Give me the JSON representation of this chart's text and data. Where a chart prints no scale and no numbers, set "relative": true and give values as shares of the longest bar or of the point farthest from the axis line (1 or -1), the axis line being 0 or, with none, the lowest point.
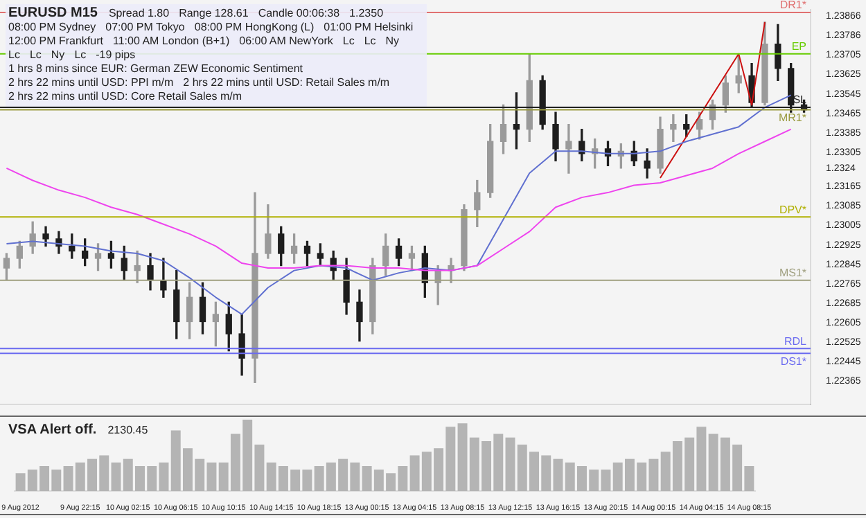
{
  "chart_data": [
    {
      "type": "candlestick",
      "title": "EURUSD M15",
      "categories": [
        null,
        null,
        null,
        null,
        null,
        null,
        null,
        null,
        null,
        null,
        null,
        null,
        null,
        null,
        null,
        null,
        null,
        null,
        null,
        null,
        null,
        null,
        null,
        null,
        null,
        null,
        null,
        null,
        null,
        null,
        null,
        null,
        null,
        null,
        null,
        null,
        null,
        null,
        null,
        null,
        null,
        null,
        null,
        null,
        null,
        null,
        null,
        null,
        null,
        null,
        null,
        null,
        null,
        null,
        null,
        null,
        null,
        null,
        null,
        null,
        null,
        null
      ],
      "ohlc": [
        [
          1.2283,
          1.2289,
          1.2278,
          1.2287
        ],
        [
          1.2287,
          1.2294,
          1.2283,
          1.2292
        ],
        [
          1.2292,
          1.2302,
          1.2289,
          1.2297
        ],
        [
          1.2297,
          1.23,
          1.2292,
          1.2295
        ],
        [
          1.2295,
          1.2298,
          1.2289,
          1.2292
        ],
        [
          1.2292,
          1.2297,
          1.2287,
          1.229
        ],
        [
          1.229,
          1.2295,
          1.2284,
          1.2287
        ],
        [
          1.2287,
          1.2293,
          1.2282,
          1.2289
        ],
        [
          1.2289,
          1.2294,
          1.2283,
          1.2287
        ],
        [
          1.2287,
          1.2292,
          1.2278,
          1.2282
        ],
        [
          1.2282,
          1.229,
          1.2277,
          1.2284
        ],
        [
          1.2284,
          1.2289,
          1.2274,
          1.2278
        ],
        [
          1.2278,
          1.2287,
          1.2271,
          1.2274
        ],
        [
          1.2274,
          1.2282,
          1.2254,
          1.2261
        ],
        [
          1.2261,
          1.2277,
          1.2254,
          1.2271
        ],
        [
          1.2271,
          1.2277,
          1.2256,
          1.2261
        ],
        [
          1.2261,
          1.2269,
          1.2251,
          1.2264
        ],
        [
          1.2264,
          1.2269,
          1.2249,
          1.2256
        ],
        [
          1.2256,
          1.2264,
          1.2239,
          1.2246
        ],
        [
          1.2246,
          1.2314,
          1.2236,
          1.2289
        ],
        [
          1.2289,
          1.2309,
          1.2287,
          1.2297
        ],
        [
          1.2297,
          1.23,
          1.2284,
          1.2289
        ],
        [
          1.2289,
          1.2297,
          1.2285,
          1.2292
        ],
        [
          1.2292,
          1.2294,
          1.2284,
          1.2289
        ],
        [
          1.2289,
          1.2293,
          1.2284,
          1.2287
        ],
        [
          1.2287,
          1.229,
          1.2278,
          1.2282
        ],
        [
          1.2282,
          1.2287,
          1.2264,
          1.2269
        ],
        [
          1.2269,
          1.2274,
          1.2253,
          1.2261
        ],
        [
          1.2261,
          1.2287,
          1.2256,
          1.2284
        ],
        [
          1.2284,
          1.2297,
          1.228,
          1.2292
        ],
        [
          1.2292,
          1.2295,
          1.2284,
          1.2287
        ],
        [
          1.2287,
          1.2292,
          1.2282,
          1.2289
        ],
        [
          1.2289,
          1.2292,
          1.2271,
          1.2277
        ],
        [
          1.2277,
          1.2284,
          1.2268,
          1.2282
        ],
        [
          1.2282,
          1.2287,
          1.2277,
          1.2284
        ],
        [
          1.2284,
          1.2309,
          1.2282,
          1.2307
        ],
        [
          1.2307,
          1.2319,
          1.23,
          1.2314
        ],
        [
          1.2314,
          1.2342,
          1.2312,
          1.2335
        ],
        [
          1.2335,
          1.235,
          1.233,
          1.2342
        ],
        [
          1.2342,
          1.2355,
          1.2332,
          1.234
        ],
        [
          1.234,
          1.2371,
          1.2335,
          1.236
        ],
        [
          1.236,
          1.2362,
          1.234,
          1.2342
        ],
        [
          1.2342,
          1.2347,
          1.2327,
          1.2332
        ],
        [
          1.2332,
          1.2342,
          1.2322,
          1.2335
        ],
        [
          1.2335,
          1.234,
          1.2327,
          1.233
        ],
        [
          1.233,
          1.2336,
          1.2324,
          1.2332
        ],
        [
          1.2332,
          1.2335,
          1.2325,
          1.2329
        ],
        [
          1.2329,
          1.2334,
          1.2324,
          1.2331
        ],
        [
          1.2331,
          1.2335,
          1.2325,
          1.2327
        ],
        [
          1.2327,
          1.2332,
          1.232,
          1.2324
        ],
        [
          1.2324,
          1.2345,
          1.2322,
          1.234
        ],
        [
          1.234,
          1.2346,
          1.2335,
          1.2342
        ],
        [
          1.2342,
          1.2346,
          1.2337,
          1.234
        ],
        [
          1.234,
          1.2347,
          1.2336,
          1.2344
        ],
        [
          1.2344,
          1.2352,
          1.234,
          1.235
        ],
        [
          1.235,
          1.2362,
          1.2347,
          1.2359
        ],
        [
          1.2359,
          1.237,
          1.2355,
          1.2362
        ],
        [
          1.2362,
          1.2367,
          1.2349,
          1.2351
        ],
        [
          1.2351,
          1.2384,
          1.235,
          1.2375
        ],
        [
          1.2375,
          1.2383,
          1.236,
          1.2365
        ],
        [
          1.2365,
          1.2367,
          1.2347,
          1.235
        ],
        [
          1.235,
          1.2352,
          1.2347,
          1.2348
        ]
      ],
      "colors": [
        "#9a9a9a",
        "#9a9a9a",
        "#9a9a9a",
        "#1e1e1e",
        "#1e1e1e",
        "#1e1e1e",
        "#1e1e1e",
        "#9a9a9a",
        "#1e1e1e",
        "#1e1e1e",
        "#9a9a9a",
        "#1e1e1e",
        "#1e1e1e",
        "#1e1e1e",
        "#9a9a9a",
        "#1e1e1e",
        "#9a9a9a",
        "#1e1e1e",
        "#1e1e1e",
        "#9a9a9a",
        "#9a9a9a",
        "#1e1e1e",
        "#9a9a9a",
        "#1e1e1e",
        "#1e1e1e",
        "#1e1e1e",
        "#1e1e1e",
        "#1e1e1e",
        "#9a9a9a",
        "#9a9a9a",
        "#1e1e1e",
        "#9a9a9a",
        "#1e1e1e",
        "#9a9a9a",
        "#9a9a9a",
        "#9a9a9a",
        "#9a9a9a",
        "#9a9a9a",
        "#9a9a9a",
        "#1e1e1e",
        "#9a9a9a",
        "#1e1e1e",
        "#1e1e1e",
        "#9a9a9a",
        "#1e1e1e",
        "#9a9a9a",
        "#1e1e1e",
        "#9a9a9a",
        "#1e1e1e",
        "#1e1e1e",
        "#9a9a9a",
        "#9a9a9a",
        "#1e1e1e",
        "#9a9a9a",
        "#9a9a9a",
        "#9a9a9a",
        "#9a9a9a",
        "#1e1e1e",
        "#9a9a9a",
        "#1e1e1e",
        "#1e1e1e",
        "#1e1e1e"
      ],
      "series": [
        {
          "type": "line",
          "color": "#ee44ee",
          "values": [
            1.2324,
            null,
            1.2319,
            null,
            1.2315,
            null,
            1.2312,
            null,
            1.2308,
            null,
            1.2305,
            null,
            1.2301,
            null,
            1.2297,
            null,
            1.2292,
            null,
            1.2285,
            null,
            1.2283,
            null,
            1.2283,
            null,
            1.2284,
            null,
            1.2284,
            null,
            1.2283,
            null,
            1.2283,
            null,
            1.2282,
            null,
            1.2282,
            null,
            1.2284,
            null,
            1.2291,
            null,
            1.2298,
            null,
            1.2308,
            null,
            1.2312,
            null,
            1.2314,
            null,
            1.2317,
            null,
            1.2318,
            null,
            1.2321,
            null,
            1.2324,
            null,
            1.233,
            null,
            1.2335,
            null,
            1.234,
            null
          ]
        },
        {
          "type": "line",
          "color": "#6070d0",
          "values": [
            1.2293,
            null,
            1.2294,
            null,
            1.2293,
            null,
            1.2292,
            null,
            1.229,
            null,
            1.2289,
            null,
            1.2286,
            null,
            1.2279,
            null,
            1.2271,
            null,
            1.2264,
            null,
            1.2275,
            null,
            1.2282,
            null,
            1.2284,
            null,
            1.2283,
            null,
            1.2278,
            null,
            1.2281,
            null,
            1.2283,
            null,
            1.2282,
            null,
            1.2284,
            null,
            1.2303,
            null,
            1.2322,
            null,
            1.2331,
            null,
            1.2331,
            null,
            1.233,
            null,
            1.233,
            null,
            1.2331,
            null,
            1.2335,
            null,
            1.2338,
            null,
            1.2341,
            null,
            1.2349,
            null,
            1.2354,
            null
          ]
        },
        {
          "type": "line",
          "color": "#cc1111",
          "values": [
            null,
            null,
            null,
            null,
            null,
            null,
            null,
            null,
            null,
            null,
            null,
            null,
            null,
            null,
            null,
            null,
            null,
            null,
            null,
            null,
            null,
            null,
            null,
            null,
            null,
            null,
            null,
            null,
            null,
            null,
            null,
            null,
            null,
            null,
            null,
            null,
            null,
            null,
            null,
            null,
            null,
            null,
            null,
            null,
            null,
            null,
            null,
            null,
            null,
            null,
            1.232,
            null,
            null,
            null,
            null,
            null,
            1.2371,
            1.235,
            1.2384,
            null,
            null,
            null
          ]
        }
      ],
      "ylim": [
        1.2227,
        1.2389
      ],
      "yticks": [
        1.22365,
        1.22445,
        1.22525,
        1.22605,
        1.22685,
        1.22765,
        1.22845,
        1.22925,
        1.23005,
        1.23085,
        1.23165,
        1.2324,
        1.23305,
        1.23385,
        1.23465,
        1.23545,
        1.23625,
        1.23705,
        1.23786,
        1.23866
      ],
      "tick_labels": "y",
      "ref_lines": [
        {
          "axis": "y",
          "value": 1.2388,
          "label": "DR1*",
          "color": "#e07070"
        },
        {
          "axis": "y",
          "value": 1.2371,
          "label": "EP",
          "color": "#66cc00"
        },
        {
          "axis": "y",
          "value": 1.2349,
          "label": "SL",
          "color": "#202020"
        },
        {
          "axis": "y",
          "value": 1.2348,
          "label": "MR1*",
          "color": "#9a9a40"
        },
        {
          "axis": "y",
          "value": 1.2304,
          "label": "DPV*",
          "color": "#b0b000"
        },
        {
          "axis": "y",
          "value": 1.2278,
          "label": "MS1*",
          "color": "#a0a080"
        },
        {
          "axis": "y",
          "value": 1.225,
          "label": "RDL",
          "color": "#6a6af0"
        },
        {
          "axis": "y",
          "value": 1.2248,
          "label": "DS1*",
          "color": "#6a6af0"
        }
      ],
      "annotations": [
        "Spread 1.80",
        "Range 128.61",
        "Candle 00:06:38",
        "1.2350",
        "08:00 PM Sydney",
        "07:00 PM Tokyo",
        "08:00 PM HongKong (L)",
        "01:00 PM Helsinki",
        "12:00 PM Frankfurt",
        "11:00 AM London (B+1)",
        "06:00 AM NewYork",
        "Lc",
        "Lc",
        "Ny",
        "Lc",
        "Lc",
        "Ny",
        "Lc",
        "-19 pips",
        "1 hrs 8 mins since EUR: German ZEW Economic Sentiment",
        "2 hrs 22 mins until USD: PPI m/m",
        "2 hrs 22 mins until USD: Retail Sales m/m",
        "2 hrs 22 mins until USD: Core Retail Sales m/m"
      ]
    },
    {
      "type": "bar",
      "title": "VSA Alert off.",
      "relative": true,
      "color": "#b4b4b4",
      "tick_labels": "x",
      "categories": [
        "9 Aug 2012",
        null,
        null,
        null,
        null,
        "9 Aug 22:15",
        null,
        null,
        null,
        "10 Aug 02:15",
        null,
        null,
        null,
        "10 Aug 06:15",
        null,
        null,
        null,
        "10 Aug 10:15",
        null,
        null,
        null,
        "10 Aug 14:15",
        null,
        null,
        null,
        "10 Aug 18:15",
        null,
        null,
        null,
        "13 Aug 00:15",
        null,
        null,
        null,
        "13 Aug 04:15",
        null,
        null,
        null,
        "13 Aug 08:15",
        null,
        null,
        null,
        "13 Aug 12:15",
        null,
        null,
        null,
        "13 Aug 16:15",
        null,
        null,
        null,
        "13 Aug 20:15",
        null,
        null,
        null,
        "14 Aug 00:15",
        null,
        null,
        null,
        "14 Aug 04:15",
        null,
        null,
        null,
        "14 Aug 08:15"
      ],
      "values": [
        0.25,
        0.3,
        0.35,
        0.3,
        0.35,
        0.4,
        0.45,
        0.5,
        0.4,
        0.45,
        0.35,
        0.35,
        0.4,
        0.85,
        0.6,
        0.45,
        0.4,
        0.4,
        0.8,
        1,
        0.65,
        0.4,
        0.35,
        0.3,
        0.3,
        0.35,
        0.4,
        0.45,
        0.4,
        0.35,
        0.3,
        0.25,
        0.35,
        0.5,
        0.55,
        0.6,
        0.9,
        0.95,
        0.75,
        0.7,
        0.8,
        0.75,
        0.65,
        0.55,
        0.5,
        0.45,
        0.4,
        0.35,
        0.3,
        0.3,
        0.4,
        0.45,
        0.4,
        0.45,
        0.55,
        0.7,
        0.75,
        0.9,
        0.8,
        0.75,
        0.65,
        0.35
      ],
      "annotations": [
        "2130.45"
      ]
    }
  ]
}
